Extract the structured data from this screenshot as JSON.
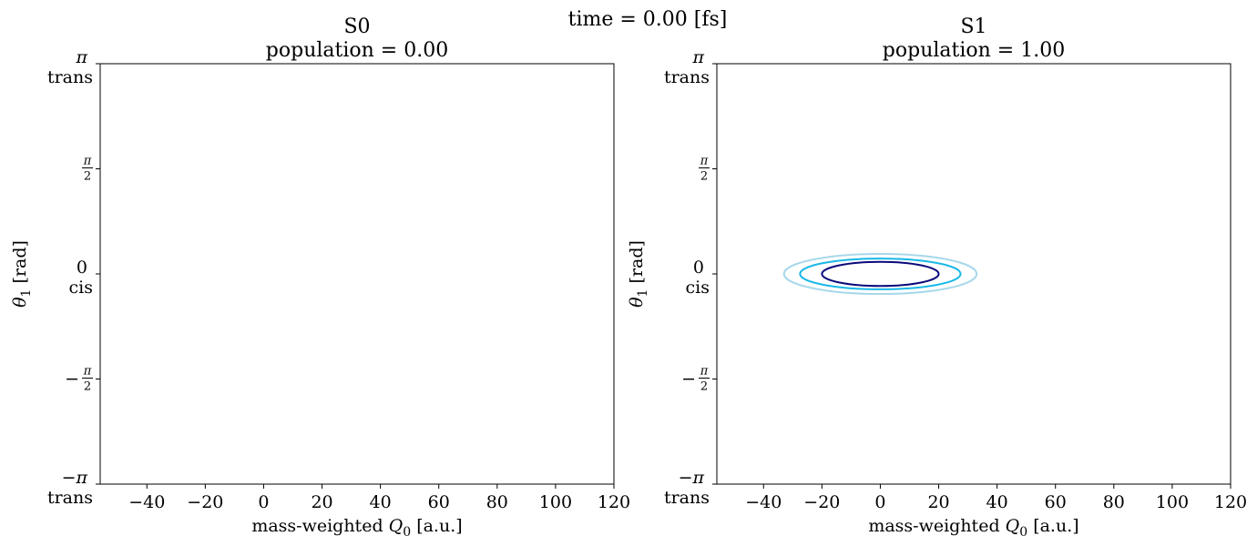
{
  "suptitle": "time = 0.00 [fs]",
  "chart_data": [
    {
      "type": "contour",
      "state": "S0",
      "population_label": "population = 0.00",
      "xlabel_prefix": "mass-weighted ",
      "xlabel_var": "Q",
      "xlabel_sub": "0",
      "xlabel_suffix": " [a.u.]",
      "ylabel_var": "θ",
      "ylabel_sub": "1",
      "ylabel_suffix": " [rad]",
      "xlim": [
        -56,
        120
      ],
      "ylim": [
        -3.14159,
        3.14159
      ],
      "xticks": [
        -40,
        -20,
        0,
        20,
        40,
        60,
        80,
        100,
        120
      ],
      "xtick_labels": [
        "−40",
        "−20",
        "0",
        "20",
        "40",
        "60",
        "80",
        "100",
        "120"
      ],
      "yticks": [
        {
          "value": 3.14159,
          "line1": "π",
          "line2": "trans"
        },
        {
          "value": 1.5708,
          "line1": "π/2",
          "line2": ""
        },
        {
          "value": 0,
          "line1": "0",
          "line2": "cis"
        },
        {
          "value": -1.5708,
          "line1": "−π/2",
          "line2": ""
        },
        {
          "value": -3.14159,
          "line1": "−π",
          "line2": "trans"
        }
      ],
      "contours": []
    },
    {
      "type": "contour",
      "state": "S1",
      "population_label": "population = 1.00",
      "xlabel_prefix": "mass-weighted ",
      "xlabel_var": "Q",
      "xlabel_sub": "0",
      "xlabel_suffix": " [a.u.]",
      "ylabel_var": "θ",
      "ylabel_sub": "1",
      "ylabel_suffix": " [rad]",
      "xlim": [
        -56,
        120
      ],
      "ylim": [
        -3.14159,
        3.14159
      ],
      "xticks": [
        -40,
        -20,
        0,
        20,
        40,
        60,
        80,
        100,
        120
      ],
      "xtick_labels": [
        "−40",
        "−20",
        "0",
        "20",
        "40",
        "60",
        "80",
        "100",
        "120"
      ],
      "yticks": [
        {
          "value": 3.14159,
          "line1": "π",
          "line2": "trans"
        },
        {
          "value": 1.5708,
          "line1": "π/2",
          "line2": ""
        },
        {
          "value": 0,
          "line1": "0",
          "line2": "cis"
        },
        {
          "value": -1.5708,
          "line1": "−π/2",
          "line2": ""
        },
        {
          "value": -3.14159,
          "line1": "−π",
          "line2": "trans"
        }
      ],
      "contours": [
        {
          "level": "outer",
          "cx": 0,
          "cy": 0,
          "rx": 33,
          "ry": 0.3,
          "color": "#a8d8ea"
        },
        {
          "level": "middle",
          "cx": 0,
          "cy": 0,
          "rx": 27.5,
          "ry": 0.23,
          "color": "#1ab8e6"
        },
        {
          "level": "inner",
          "cx": 0,
          "cy": 0,
          "rx": 20,
          "ry": 0.18,
          "color": "#0a0a7a"
        }
      ]
    }
  ]
}
